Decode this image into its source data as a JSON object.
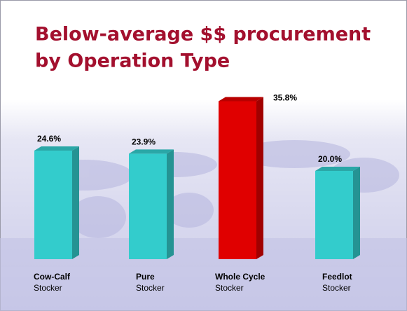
{
  "chart_data": {
    "type": "bar3d",
    "title": [
      "Below-average $$ procurement",
      "by Operation Type"
    ],
    "categories": [
      [
        "Cow-Calf",
        "Stocker"
      ],
      [
        "Pure",
        "Stocker"
      ],
      [
        "Whole Cycle",
        "Stocker"
      ],
      [
        "Feedlot",
        "Stocker"
      ]
    ],
    "values": [
      24.6,
      23.9,
      35.8,
      20.0
    ],
    "value_labels": [
      "24.6%",
      "23.9%",
      "35.8%",
      "20.0%"
    ],
    "colors": [
      "#33cccc",
      "#33cccc",
      "#e00000",
      "#33cccc"
    ]
  }
}
